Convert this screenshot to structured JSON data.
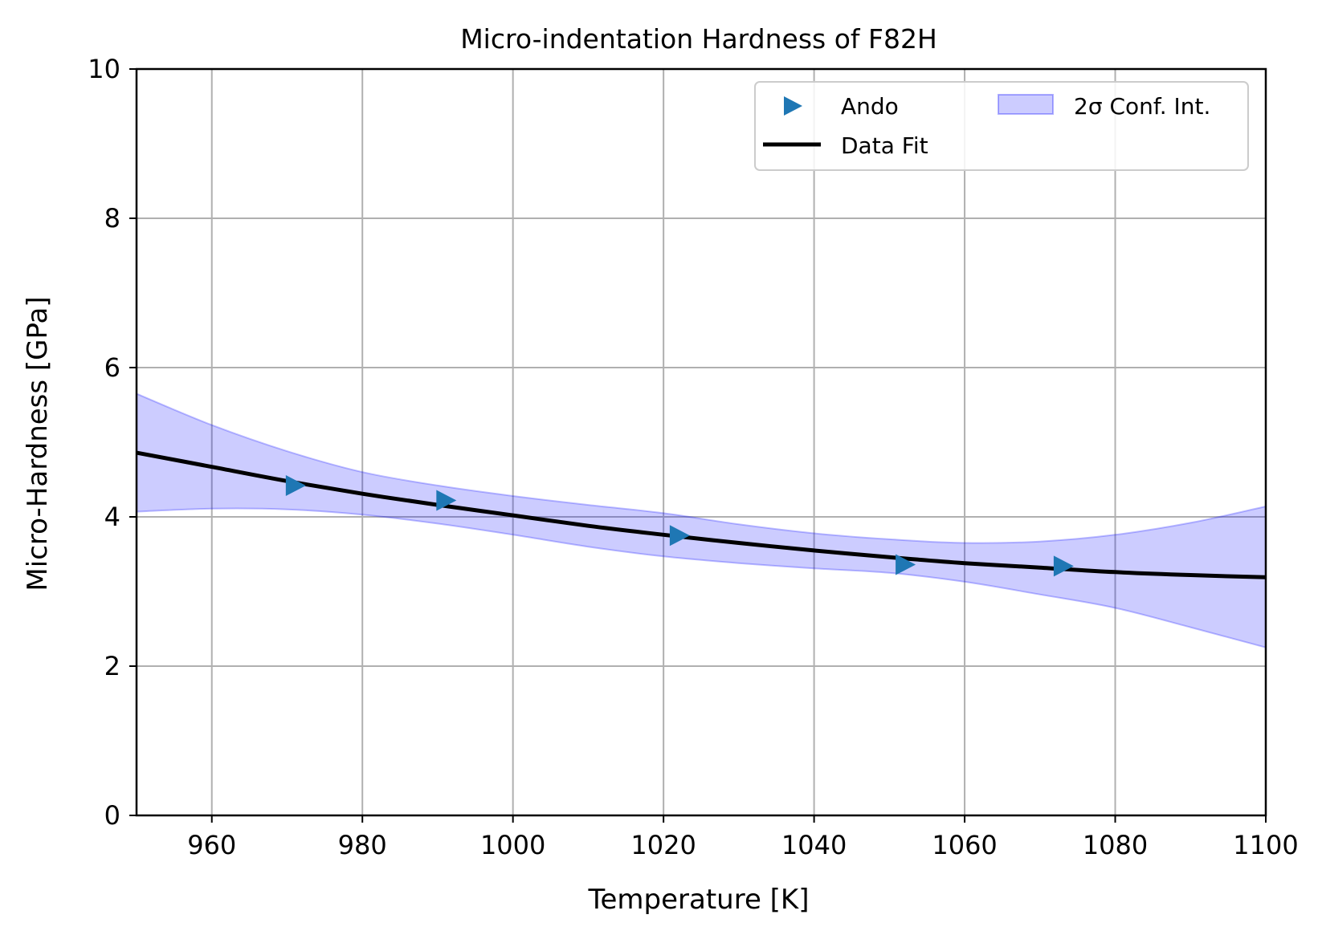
{
  "chart_data": {
    "type": "line",
    "title": "Micro-indentation Hardness of F82H",
    "xlabel": "Temperature [K]",
    "ylabel": "Micro-Hardness [GPa]",
    "xlim": [
      950,
      1100
    ],
    "ylim": [
      0,
      10
    ],
    "xticks": [
      960,
      980,
      1000,
      1020,
      1040,
      1060,
      1080,
      1100
    ],
    "yticks": [
      0,
      2,
      4,
      6,
      8,
      10
    ],
    "grid": true,
    "legend_position": "top-right",
    "series": [
      {
        "name": "Ando",
        "kind": "scatter",
        "marker": "triangle-right",
        "color": "#1f77b4",
        "x": [
          971,
          991,
          1022,
          1052,
          1073
        ],
        "y": [
          4.42,
          4.22,
          3.75,
          3.36,
          3.34
        ]
      },
      {
        "name": "Data Fit",
        "kind": "line",
        "color": "#000000",
        "x": [
          950,
          960,
          970,
          980,
          990,
          1000,
          1010,
          1020,
          1030,
          1040,
          1050,
          1060,
          1070,
          1080,
          1090,
          1100
        ],
        "y": [
          4.86,
          4.67,
          4.48,
          4.31,
          4.16,
          4.02,
          3.88,
          3.76,
          3.65,
          3.55,
          3.46,
          3.38,
          3.32,
          3.26,
          3.22,
          3.19
        ]
      },
      {
        "name": "2σ Conf. Int.",
        "kind": "band",
        "color": "#0000ff",
        "x": [
          950,
          960,
          970,
          980,
          990,
          1000,
          1010,
          1020,
          1030,
          1040,
          1050,
          1060,
          1070,
          1080,
          1090,
          1100
        ],
        "upper": [
          5.65,
          5.23,
          4.88,
          4.6,
          4.42,
          4.28,
          4.16,
          4.05,
          3.9,
          3.78,
          3.7,
          3.65,
          3.67,
          3.76,
          3.92,
          4.14
        ],
        "lower": [
          4.07,
          4.11,
          4.1,
          4.03,
          3.91,
          3.76,
          3.6,
          3.47,
          3.38,
          3.31,
          3.25,
          3.13,
          2.96,
          2.78,
          2.52,
          2.25
        ]
      }
    ]
  }
}
